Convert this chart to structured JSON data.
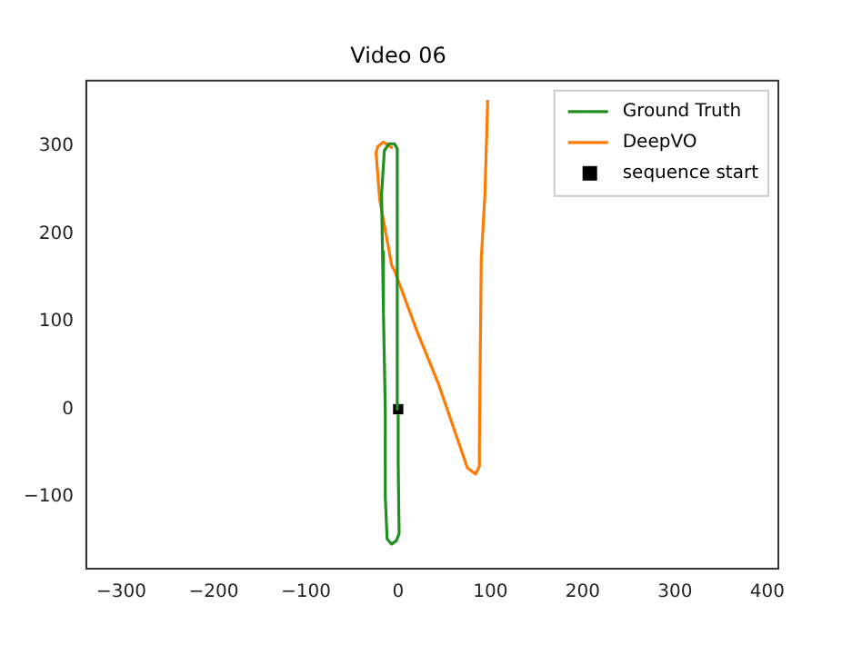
{
  "chart_data": {
    "type": "line",
    "title": "Video 06",
    "xlim": [
      -338,
      412
    ],
    "ylim": [
      -182,
      375
    ],
    "xticks": [
      -300,
      -200,
      -100,
      0,
      100,
      200,
      300,
      400
    ],
    "yticks": [
      -100,
      0,
      100,
      200,
      300
    ],
    "grid": false,
    "legend": "top right",
    "series": [
      {
        "name": "Ground Truth",
        "color": "#1f8f1f",
        "marker": "none",
        "x": [
          0,
          -1,
          -4,
          -10,
          -15,
          -18,
          -17,
          -16,
          -14,
          -14,
          -12,
          -7,
          -2,
          1,
          0,
          0
        ],
        "values": [
          0,
          297,
          303,
          303,
          295,
          245,
          180,
          110,
          0,
          -100,
          -148,
          -154,
          -150,
          -142,
          -60,
          -6
        ]
      },
      {
        "name": "DeepVO",
        "color": "#ff7a00",
        "marker": "none",
        "x": [
          -6,
          -16,
          -22,
          -24,
          -20,
          -7,
          -3.5,
          20,
          44,
          75,
          84,
          88,
          88,
          90,
          94,
          97
        ],
        "values": [
          298,
          305,
          300,
          293,
          239,
          164,
          157,
          90,
          28,
          -67,
          -74,
          -65,
          -40,
          171,
          245,
          353
        ]
      },
      {
        "name": "sequence start",
        "type": "scatter",
        "color": "#000000",
        "marker": "square",
        "x": [
          0
        ],
        "values": [
          0
        ]
      }
    ]
  }
}
